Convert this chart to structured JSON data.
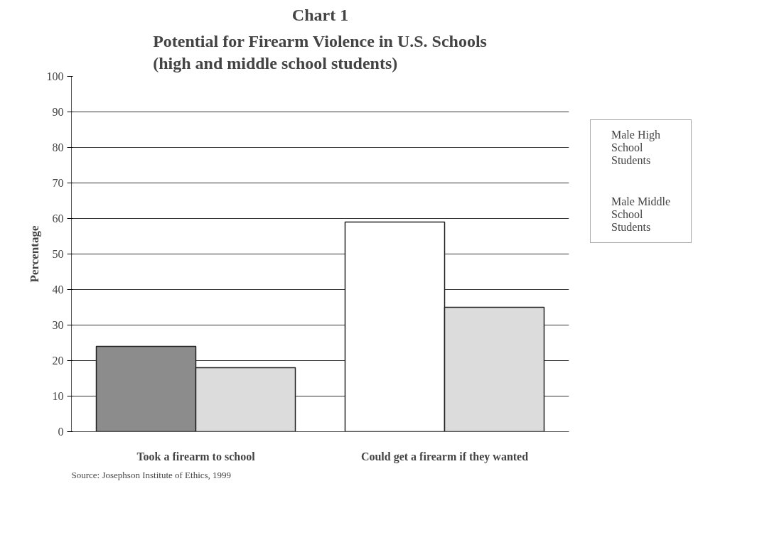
{
  "chart_data": {
    "type": "bar",
    "title": "Chart 1",
    "subtitle": "Potential for Firearm Violence in U.S. Schools\n(high and middle school students)",
    "ylabel": "Percentage",
    "categories": [
      "Took a firearm to school",
      "Could get a firearm if they wanted"
    ],
    "series": [
      {
        "name": "Male High School Students",
        "color": "#ffffff",
        "colors": [
          "#8c8c8c",
          "#ffffff"
        ],
        "values": [
          24,
          59
        ]
      },
      {
        "name": "Male Middle School Students",
        "color": "#dcdcdc",
        "values": [
          18,
          35
        ]
      }
    ],
    "ylim": [
      0,
      100
    ],
    "yticks": [
      0,
      10,
      20,
      30,
      40,
      50,
      60,
      70,
      80,
      90,
      100
    ],
    "grid": "y",
    "legend": "right",
    "annotations": [
      "Source: Josephson Institute of Ethics, 1999"
    ]
  }
}
